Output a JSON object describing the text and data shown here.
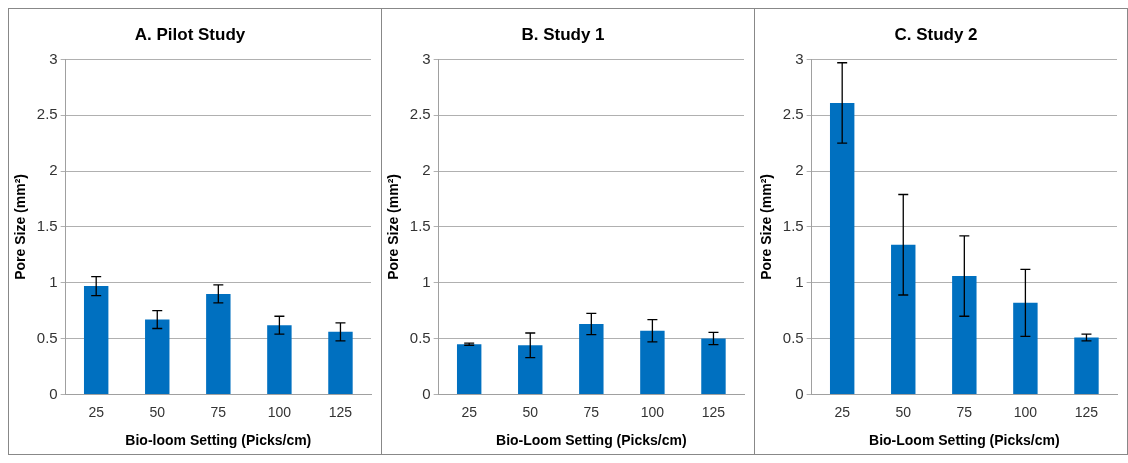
{
  "chart_data": [
    {
      "type": "bar",
      "title": "A. Pilot Study",
      "xlabel": "Bio-loom Setting (Picks/cm)",
      "ylabel": "Pore Size (mm²)",
      "categories": [
        "25",
        "50",
        "75",
        "100",
        "125"
      ],
      "values": [
        0.97,
        0.67,
        0.9,
        0.62,
        0.56
      ],
      "errors": [
        0.085,
        0.08,
        0.08,
        0.08,
        0.08
      ],
      "color": "#0070c0",
      "ylim": [
        0,
        3
      ],
      "yticks": [
        0,
        0.5,
        1,
        1.5,
        2,
        2.5,
        3
      ],
      "grid": "y",
      "legend": false
    },
    {
      "type": "bar",
      "title": "B. Study 1",
      "xlabel": "Bio-Loom Setting (Picks/cm)",
      "ylabel": "Pore Size (mm²)",
      "categories": [
        "25",
        "50",
        "75",
        "100",
        "125"
      ],
      "values": [
        0.45,
        0.44,
        0.63,
        0.57,
        0.5
      ],
      "errors": [
        0.01,
        0.11,
        0.095,
        0.1,
        0.055
      ],
      "color": "#0070c0",
      "ylim": [
        0,
        3
      ],
      "yticks": [
        0,
        0.5,
        1,
        1.5,
        2,
        2.5,
        3
      ],
      "grid": "y",
      "legend": false
    },
    {
      "type": "bar",
      "title": "C. Study 2",
      "xlabel": "Bio-Loom Setting (Picks/cm)",
      "ylabel": "Pore Size (mm²)",
      "categories": [
        "25",
        "50",
        "75",
        "100",
        "125"
      ],
      "values": [
        2.61,
        1.34,
        1.06,
        0.82,
        0.51
      ],
      "errors": [
        0.36,
        0.45,
        0.36,
        0.3,
        0.03
      ],
      "color": "#0070c0",
      "ylim": [
        0,
        3
      ],
      "yticks": [
        0,
        0.5,
        1,
        1.5,
        2,
        2.5,
        3
      ],
      "grid": "y",
      "legend": false
    }
  ]
}
